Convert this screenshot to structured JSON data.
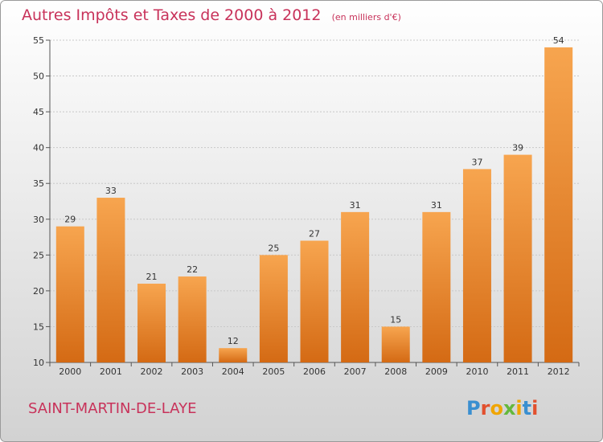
{
  "chart_data": {
    "type": "bar",
    "title": "Autres Impôts et Taxes de 2000 à 2012",
    "subtitle": "(en milliers d'€)",
    "categories": [
      "2000",
      "2001",
      "2002",
      "2003",
      "2004",
      "2005",
      "2006",
      "2007",
      "2008",
      "2009",
      "2010",
      "2011",
      "2012"
    ],
    "values": [
      29,
      33,
      21,
      22,
      12,
      25,
      27,
      31,
      15,
      31,
      37,
      39,
      54
    ],
    "data_labels": [
      "29",
      "33",
      "21",
      "22",
      "12",
      "25",
      "27",
      "31",
      "15",
      "31",
      "37",
      "39",
      "54"
    ],
    "ylim": [
      10,
      55
    ],
    "yticks": [
      "10",
      "15",
      "20",
      "25",
      "30",
      "35",
      "40",
      "45",
      "50",
      "55"
    ],
    "grid": true,
    "xlabel": "",
    "ylabel": ""
  },
  "footer": {
    "commune": "SAINT-MARTIN-DE-LAYE",
    "logo": "Proxiti"
  },
  "colors": {
    "bar_light": "#f7a54f",
    "bar_dark": "#d46a14",
    "title": "#c8325a",
    "background_top": "#ffffff",
    "background_bottom": "#d4d4d4"
  }
}
